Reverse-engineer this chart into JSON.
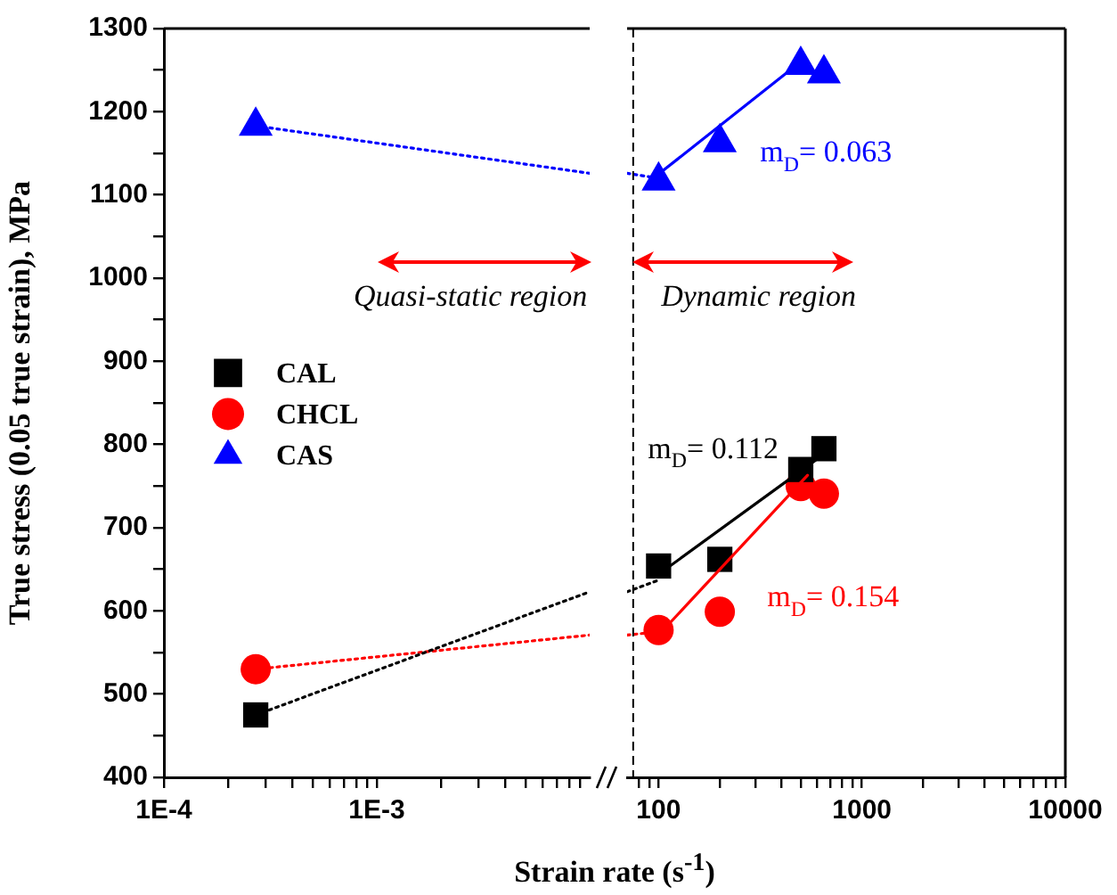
{
  "chart_data": [
    {
      "type": "scatter",
      "xlabel": "Strain rate (s$^{-1}$)",
      "ylabel": "True stress (0.05 true strain), MPa",
      "log": "x",
      "xlim": [
        0.0001,
        0.01
      ],
      "xticks": [
        {
          "value": 0.0001,
          "label": "1E-4"
        },
        {
          "value": 0.0002,
          "label": null
        },
        {
          "value": 0.0003,
          "label": null
        },
        {
          "value": 0.0004,
          "label": null
        },
        {
          "value": 0.0005,
          "label": null
        },
        {
          "value": 0.0006,
          "label": null
        },
        {
          "value": 0.0007,
          "label": null
        },
        {
          "value": 0.0008,
          "label": null
        },
        {
          "value": 0.0009,
          "label": null
        },
        {
          "value": 0.001,
          "label": "1E-3"
        },
        {
          "value": 0.002,
          "label": null
        },
        {
          "value": 0.003,
          "label": null
        },
        {
          "value": 0.004,
          "label": null
        },
        {
          "value": 0.005,
          "label": null
        },
        {
          "value": 0.006,
          "label": null
        },
        {
          "value": 0.007,
          "label": null
        },
        {
          "value": 0.008,
          "label": null
        },
        {
          "value": 0.009,
          "label": null
        }
      ],
      "ylim": [
        400,
        1300
      ],
      "yticks": [
        400,
        {
          "value": 450,
          "label": null
        },
        500,
        {
          "value": 550,
          "label": null
        },
        600,
        {
          "value": 650,
          "label": null
        },
        700,
        {
          "value": 750,
          "label": null
        },
        800,
        {
          "value": 850,
          "label": null
        },
        900,
        {
          "value": 950,
          "label": null
        },
        1000,
        {
          "value": 1050,
          "label": null
        },
        1100,
        {
          "value": 1150,
          "label": null
        },
        1200,
        {
          "value": 1250,
          "label": null
        },
        1300
      ],
      "legend": "left",
      "annotations": [
        "Quasi-static region"
      ],
      "series": [
        {
          "name": "CAL",
          "color": "#000000",
          "marker": "square",
          "x": [
            0.00027
          ],
          "values": [
            475
          ]
        },
        {
          "name": "CHCL",
          "color": "#ff0000",
          "marker": "circle",
          "x": [
            0.00027
          ],
          "values": [
            530
          ]
        },
        {
          "name": "CAS",
          "color": "#0000ff",
          "marker": "triangle",
          "x": [
            0.00027
          ],
          "values": [
            1183
          ]
        },
        {
          "type": "line",
          "color": "#000000",
          "marker": "none",
          "line_style": "dotted",
          "x": [
            0.00027,
            0.01
          ],
          "values": [
            475,
            623
          ]
        },
        {
          "type": "line",
          "color": "#ff0000",
          "marker": "none",
          "line_style": "dotted",
          "x": [
            0.00027,
            0.01
          ],
          "values": [
            530,
            571
          ]
        },
        {
          "type": "line",
          "color": "#0000ff",
          "marker": "none",
          "line_style": "dotted",
          "x": [
            0.00027,
            0.01
          ],
          "values": [
            1183,
            1126
          ]
        }
      ]
    },
    {
      "type": "scatter",
      "log": "x",
      "xlim": [
        70,
        10000
      ],
      "xticks": [
        {
          "value": 80,
          "label": null
        },
        {
          "value": 90,
          "label": null
        },
        100,
        {
          "value": 200,
          "label": null
        },
        {
          "value": 300,
          "label": null
        },
        {
          "value": 400,
          "label": null
        },
        {
          "value": 500,
          "label": null
        },
        {
          "value": 600,
          "label": null
        },
        {
          "value": 700,
          "label": null
        },
        {
          "value": 800,
          "label": null
        },
        {
          "value": 900,
          "label": null
        },
        1000,
        {
          "value": 2000,
          "label": null
        },
        {
          "value": 3000,
          "label": null
        },
        {
          "value": 4000,
          "label": null
        },
        {
          "value": 5000,
          "label": null
        },
        {
          "value": 6000,
          "label": null
        },
        {
          "value": 7000,
          "label": null
        },
        {
          "value": 8000,
          "label": null
        },
        {
          "value": 9000,
          "label": null
        },
        10000
      ],
      "ylim": [
        400,
        1300
      ],
      "tick_labels": "x",
      "ref_lines": [
        {
          "axis": "x",
          "value": 75,
          "color": "#000000",
          "line_style": "dashed"
        }
      ],
      "annotations": [
        "Dynamic region"
      ],
      "series": [
        {
          "type": "line",
          "color": "#000000",
          "marker": "none",
          "line_style": "dotted",
          "x": [
            70,
            100
          ],
          "values": [
            623,
            637
          ]
        },
        {
          "type": "line",
          "color": "#ff0000",
          "marker": "none",
          "line_style": "dotted",
          "x": [
            70,
            100
          ],
          "values": [
            571,
            575
          ]
        },
        {
          "type": "line",
          "color": "#0000ff",
          "marker": "none",
          "line_style": "dotted",
          "x": [
            70,
            100
          ],
          "values": [
            1126,
            1120
          ]
        },
        {
          "type": "line",
          "name": "m$_{D}$= 0.112",
          "color": "#000000",
          "marker": "none",
          "line_style": "solid",
          "x": [
            100,
            590
          ],
          "values": [
            644,
            781
          ]
        },
        {
          "type": "line",
          "name": "m$_{D}$= 0.154",
          "color": "#ff0000",
          "marker": "none",
          "line_style": "solid",
          "x": [
            100,
            540
          ],
          "values": [
            571,
            763
          ]
        },
        {
          "type": "line",
          "name": "m$_{D}$= 0.063",
          "color": "#0000ff",
          "marker": "none",
          "line_style": "solid",
          "x": [
            100,
            460
          ],
          "values": [
            1125,
            1253
          ]
        },
        {
          "color": "#000000",
          "marker": "square",
          "x": [
            100,
            200,
            500,
            650
          ],
          "values": [
            654,
            662,
            770,
            795
          ]
        },
        {
          "color": "#ff0000",
          "marker": "circle",
          "x": [
            100,
            200,
            500,
            650
          ],
          "values": [
            577,
            599,
            750,
            741
          ]
        },
        {
          "color": "#0000ff",
          "marker": "triangle",
          "x": [
            100,
            200,
            500,
            650
          ],
          "values": [
            1117,
            1163,
            1256,
            1246
          ]
        }
      ]
    }
  ]
}
